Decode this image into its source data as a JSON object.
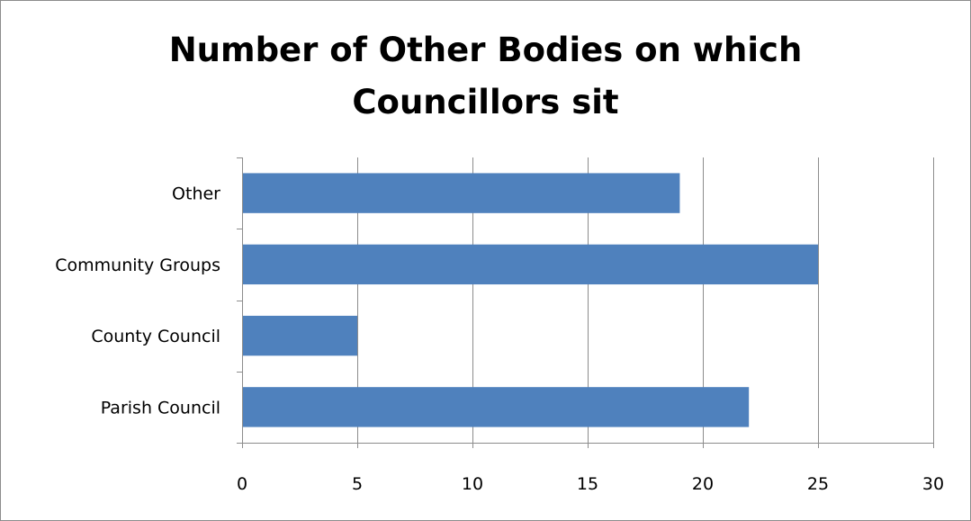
{
  "chart_data": {
    "type": "bar",
    "orientation": "horizontal",
    "title": "Number of Other Bodies on which Councillors sit",
    "title_lines": [
      "Number of Other Bodies on which",
      "Councillors sit"
    ],
    "categories": [
      "Parish Council",
      "County Council",
      "Community Groups",
      "Other"
    ],
    "values": [
      22,
      5,
      25,
      19
    ],
    "xlim": [
      0,
      30
    ],
    "x_ticks": [
      0,
      5,
      10,
      15,
      20,
      25,
      30
    ],
    "grid": true,
    "legend": "none",
    "bar_color": "#4f81bd",
    "grid_color": "#8c8c8c"
  }
}
